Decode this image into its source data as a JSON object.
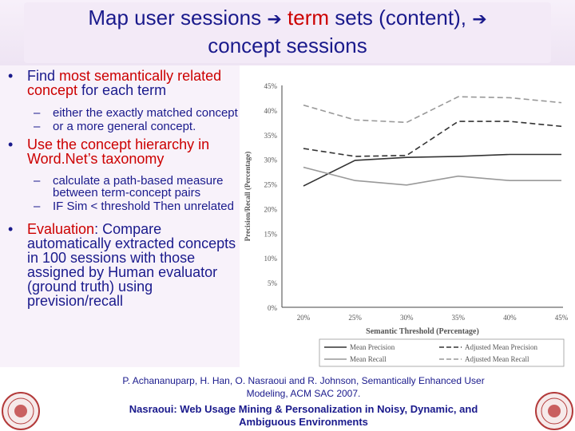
{
  "title": {
    "part1": "Map user sessions",
    "part2": "term",
    "part3": "sets (content),",
    "part4": "concept sessions"
  },
  "icons": {
    "arrow": "right-arrow-icon",
    "seal": "university-seal-icon"
  },
  "colors": {
    "text": "#1a1a8c",
    "highlight": "#cc0000"
  },
  "bullets": {
    "b1": {
      "pre": "Find ",
      "hl": "most semantically related concept",
      "post": " for each term"
    },
    "b1_subs": [
      "either the exactly matched concept",
      "or a more general concept."
    ],
    "b2": "Use the concept hierarchy in Word.Net’s taxonomy",
    "b2_subs": [
      "calculate a path-based measure between term-concept pairs",
      "IF Sim < threshold Then unrelated"
    ],
    "b3": {
      "hl": "Evaluation",
      "post": ": Compare automatically extracted concepts in 100 sessions with those assigned by Human evaluator (ground truth) using prevision/recall"
    }
  },
  "chart_data": {
    "type": "line",
    "categories": [
      "20%",
      "25%",
      "30%",
      "35%",
      "40%",
      "45%"
    ],
    "ylim": [
      0,
      45
    ],
    "yticks": [
      "0%",
      "5%",
      "10%",
      "15%",
      "20%",
      "25%",
      "30%",
      "35%",
      "40%",
      "45%"
    ],
    "ylabel": "Precision/Recall (Percentage)",
    "xlabel": "Semantic Threshold (Percentage)",
    "legend_position": "bottom",
    "series": [
      {
        "name": "Mean Precision",
        "values": [
          24.6,
          29.8,
          30.4,
          30.6,
          31.0,
          31.0
        ],
        "dash": "solid",
        "color": "#333333"
      },
      {
        "name": "Mean Recall",
        "values": [
          28.4,
          25.7,
          24.8,
          26.6,
          25.7,
          25.7
        ],
        "dash": "solid",
        "color": "#999999"
      },
      {
        "name": "Adjusted Mean Precision",
        "values": [
          32.2,
          30.6,
          30.8,
          37.7,
          37.7,
          36.7
        ],
        "dash": "dashed",
        "color": "#333333"
      },
      {
        "name": "Adjusted Mean Recall",
        "values": [
          41.0,
          38.0,
          37.5,
          42.7,
          42.5,
          41.5
        ],
        "dash": "dashed",
        "color": "#999999"
      }
    ]
  },
  "citation": "P. Achananuparp, H. Han, O. Nasraoui and R. Johnson, Semantically Enhanced User Modeling, ACM SAC 2007.",
  "footer": "Nasraoui: Web Usage Mining & Personalization in Noisy, Dynamic, and Ambiguous Environments"
}
